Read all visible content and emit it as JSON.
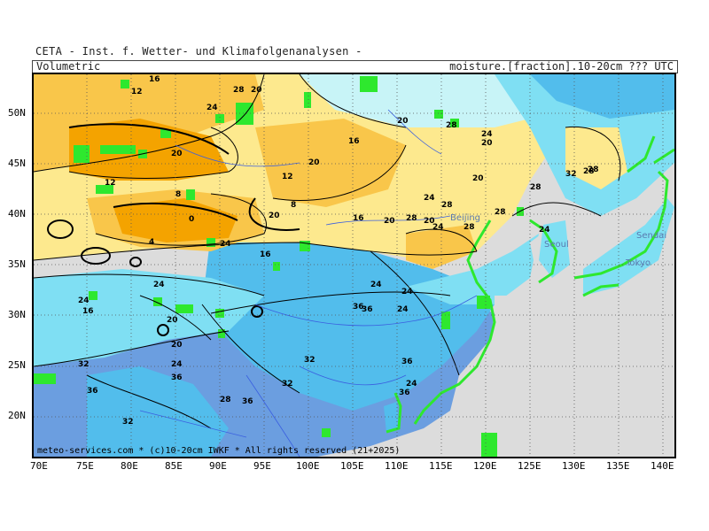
{
  "header": {
    "title": "CETA - Inst. f. Wetter- und Klimafolgenanalysen -",
    "left": "Volumetric",
    "right": "moisture.[fraction].10-20cm ??? UTC"
  },
  "credit": "meteo-services.com * (c)10-20cm IWKF * All rights reserved (21+2025)",
  "axes": {
    "lat": [
      "50N",
      "45N",
      "40N",
      "35N",
      "30N",
      "25N",
      "20N"
    ],
    "lon": [
      "70E",
      "75E",
      "80E",
      "85E",
      "90E",
      "95E",
      "100E",
      "105E",
      "110E",
      "115E",
      "120E",
      "125E",
      "130E",
      "135E",
      "140E"
    ]
  },
  "cities": [
    "Beijing",
    "Seoul",
    "Sendai",
    "Tokyo"
  ],
  "contour_labels": [
    "16",
    "12",
    "28",
    "20",
    "24",
    "20",
    "28",
    "20",
    "24",
    "16",
    "20",
    "20",
    "8",
    "12",
    "8",
    "20",
    "24",
    "16",
    "20",
    "24",
    "20",
    "28",
    "12",
    "4",
    "0",
    "24",
    "16",
    "24",
    "24",
    "16",
    "20",
    "24",
    "24",
    "24",
    "28",
    "28",
    "28",
    "28",
    "28",
    "32",
    "32",
    "24",
    "20",
    "32",
    "36",
    "36",
    "32",
    "36",
    "32",
    "36",
    "28",
    "36",
    "36",
    "24",
    "20",
    "36",
    "28",
    "24"
  ],
  "colors": {
    "orange": "#f4a300",
    "light_orange": "#f9c64a",
    "yellow": "#fde98e",
    "pale_yellow": "#fff6c8",
    "pale_cyan": "#c8f4f7",
    "cyan": "#7fdff3",
    "light_blue": "#52bdec",
    "blue": "#6b9ee0",
    "land_gray": "#dcdcdc",
    "coast_green": "#2ee82e"
  }
}
